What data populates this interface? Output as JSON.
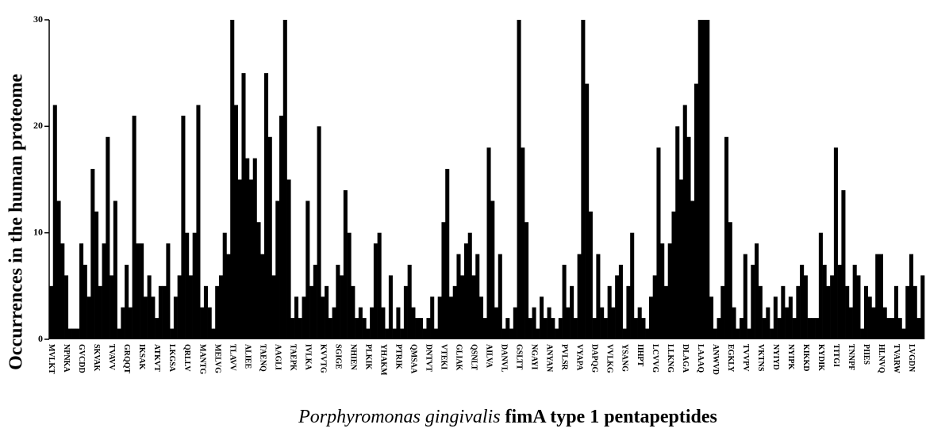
{
  "chart_data": {
    "type": "bar",
    "ylabel": "Occurrences in the human proteome",
    "xlabel": {
      "italic": "Porphyromonas gingivalis",
      "rest": "fimA type 1 pentapeptides"
    },
    "color": "#000000",
    "ylim": [
      0,
      30
    ],
    "yticks": [
      0,
      10,
      20,
      30
    ],
    "categories": [
      "MVLKT",
      null,
      null,
      null,
      "NPNKA",
      null,
      null,
      null,
      "GVCDD",
      null,
      null,
      null,
      "SKVAK",
      null,
      null,
      null,
      "TVAVV",
      null,
      null,
      null,
      "GRQQT",
      null,
      null,
      null,
      "IKSAK",
      null,
      null,
      null,
      "ATKVT",
      null,
      null,
      null,
      "LKGSA",
      null,
      null,
      null,
      "QRLLV",
      null,
      null,
      null,
      "MANTG",
      null,
      null,
      null,
      "MELVG",
      null,
      null,
      null,
      "TLAVV",
      null,
      null,
      null,
      "ALIEE",
      null,
      null,
      null,
      "TAENQ",
      null,
      null,
      null,
      "AAGLI",
      null,
      null,
      null,
      "TAEPK",
      null,
      null,
      null,
      "IVLKA",
      null,
      null,
      null,
      "KVVTG",
      null,
      null,
      null,
      "SGIGE",
      null,
      null,
      null,
      "NHIEN",
      null,
      null,
      null,
      "PLKIK",
      null,
      null,
      null,
      "YHAKM",
      null,
      null,
      null,
      "PTRIK",
      null,
      null,
      null,
      "QMSAA",
      null,
      null,
      null,
      "DNTVT",
      null,
      null,
      null,
      "VTEKI",
      null,
      null,
      null,
      "GLIAK",
      null,
      null,
      null,
      "QSNLT",
      null,
      null,
      null,
      "AILVA",
      null,
      null,
      null,
      "DANVL",
      null,
      null,
      null,
      "GSLTT",
      null,
      null,
      null,
      "NGAYI",
      null,
      null,
      null,
      "ANYAN",
      null,
      null,
      null,
      "PVLSR",
      null,
      null,
      null,
      "VYAPA",
      null,
      null,
      null,
      "DAPQG",
      null,
      null,
      null,
      "VVLKG",
      null,
      null,
      null,
      "YSANG",
      null,
      null,
      null,
      "IIHPT",
      null,
      null,
      null,
      "LCVVG",
      null,
      null,
      null,
      "LLKNG",
      null,
      null,
      null,
      "DLAGA",
      null,
      null,
      null,
      "LAAAQ",
      null,
      null,
      null,
      "ANWVD",
      null,
      null,
      null,
      "EGKLY",
      null,
      null,
      null,
      "TVVPV",
      null,
      null,
      null,
      "VKTNS",
      null,
      null,
      null,
      "NYIYD",
      null,
      null,
      null,
      "NYIPK",
      null,
      null,
      null,
      "KIKKD",
      null,
      null,
      null,
      "KYDIK",
      null,
      null,
      null,
      "TITGI",
      null,
      null,
      null,
      "TNNPF",
      null,
      null,
      null,
      "PIIES",
      null,
      null,
      null,
      "HLNVQ",
      null,
      null,
      null,
      "TVARW",
      null,
      null,
      null,
      "LVGDN",
      null,
      null,
      null
    ],
    "values": [
      5,
      22,
      13,
      9,
      6,
      1,
      1,
      1,
      9,
      7,
      4,
      16,
      12,
      5,
      9,
      19,
      6,
      13,
      1,
      3,
      7,
      3,
      21,
      9,
      9,
      4,
      6,
      4,
      2,
      5,
      5,
      9,
      1,
      4,
      6,
      21,
      10,
      6,
      10,
      22,
      3,
      5,
      3,
      1,
      5,
      6,
      10,
      8,
      30,
      22,
      15,
      25,
      17,
      15,
      17,
      11,
      8,
      25,
      19,
      6,
      13,
      21,
      30,
      15,
      2,
      4,
      2,
      4,
      13,
      5,
      7,
      20,
      4,
      5,
      2,
      3,
      7,
      6,
      14,
      10,
      5,
      2,
      3,
      2,
      1,
      3,
      9,
      10,
      3,
      1,
      6,
      1,
      3,
      1,
      5,
      7,
      3,
      2,
      2,
      1,
      2,
      4,
      1,
      4,
      11,
      16,
      4,
      5,
      8,
      6,
      9,
      10,
      6,
      8,
      4,
      2,
      18,
      13,
      3,
      8,
      1,
      2,
      1,
      3,
      30,
      18,
      11,
      2,
      3,
      1,
      4,
      2,
      3,
      2,
      1,
      2,
      7,
      3,
      5,
      2,
      8,
      30,
      24,
      12,
      2,
      8,
      3,
      2,
      5,
      3,
      6,
      7,
      1,
      5,
      10,
      2,
      3,
      2,
      1,
      4,
      6,
      18,
      9,
      5,
      9,
      12,
      20,
      15,
      22,
      19,
      13,
      24,
      30,
      30,
      30,
      4,
      1,
      2,
      5,
      19,
      11,
      3,
      1,
      2,
      8,
      1,
      7,
      9,
      5,
      2,
      3,
      1,
      4,
      2,
      5,
      3,
      4,
      2,
      5,
      7,
      6,
      2,
      2,
      2,
      10,
      7,
      5,
      6,
      18,
      7,
      14,
      5,
      3,
      7,
      6,
      1,
      5,
      4,
      3,
      8,
      8,
      3,
      2,
      2,
      5,
      2,
      1,
      5,
      8,
      5,
      2,
      6
    ]
  }
}
